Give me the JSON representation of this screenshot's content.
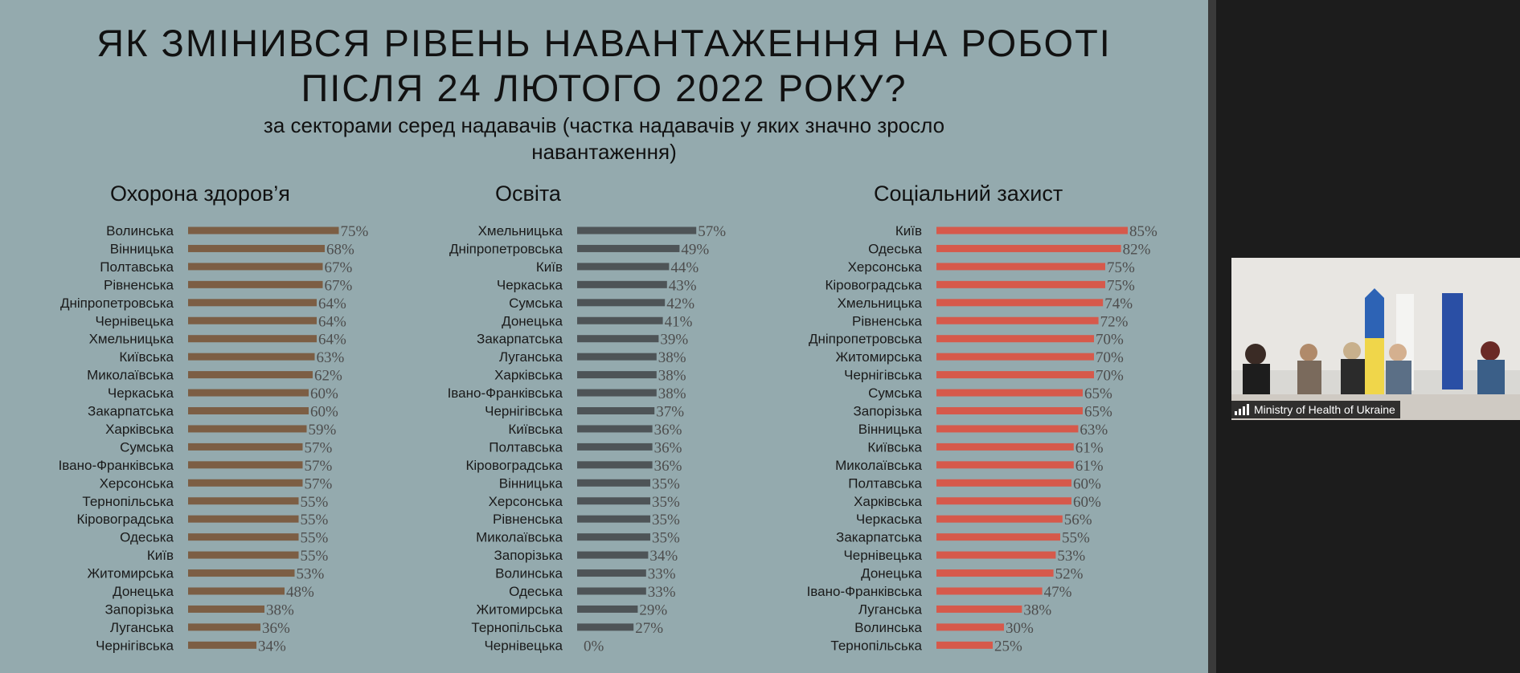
{
  "slide": {
    "title_line1": "ЯК ЗМІНИВСЯ РІВЕНЬ НАВАНТАЖЕННЯ НА РОБОТІ",
    "title_line2": "ПІСЛЯ 24 ЛЮТОГО 2022 РОКУ?",
    "subtitle_line1": "за секторами серед надавачів  (частка надавачів у яких значно зросло",
    "subtitle_line2": "навантаження)"
  },
  "video": {
    "participant_name": "Ministry of Health of Ukraine"
  },
  "colors": {
    "health": "#7c5e44",
    "education": "#4e5457",
    "social": "#d6594b"
  },
  "chart_data": [
    {
      "type": "bar",
      "title": "Охорона здоров’я",
      "orientation": "horizontal",
      "unit": "%",
      "categories": [
        "Волинська",
        "Вінницька",
        "Полтавська",
        "Рівненська",
        "Дніпропетровська",
        "Чернівецька",
        "Хмельницька",
        "Київська",
        "Миколаївська",
        "Черкаська",
        "Закарпатська",
        "Харківська",
        "Сумська",
        "Івано-Франківська",
        "Херсонська",
        "Тернопільська",
        "Кіровоградська",
        "Одеська",
        "Київ",
        "Житомирська",
        "Донецька",
        "Запорізька",
        "Луганська",
        "Чернігівська"
      ],
      "values": [
        75,
        68,
        67,
        67,
        64,
        64,
        64,
        63,
        62,
        60,
        60,
        59,
        57,
        57,
        57,
        55,
        55,
        55,
        55,
        53,
        48,
        38,
        36,
        34
      ],
      "value_labels": [
        "75%",
        "68%",
        "67%",
        "67%",
        "64%",
        "64%",
        "64%",
        "63%",
        "62%",
        "60%",
        "60%",
        "59%",
        "57%",
        "57%",
        "57%",
        "55%",
        "55%",
        "55%",
        "55%",
        "53%",
        "48%",
        "38%",
        "36%",
        "34%"
      ]
    },
    {
      "type": "bar",
      "title": "Освіта",
      "orientation": "horizontal",
      "unit": "%",
      "categories": [
        "Хмельницька",
        "Дніпропетровська",
        "Київ",
        "Черкаська",
        "Сумська",
        "Донецька",
        "Закарпатська",
        "Луганська",
        "Харківська",
        "Івано-Франківська",
        "Чернігівська",
        "Київська",
        "Полтавська",
        "Кіровоградська",
        "Вінницька",
        "Херсонська",
        "Рівненська",
        "Миколаївська",
        "Запорізька",
        "Волинська",
        "Одеська",
        "Житомирська",
        "Тернопільська",
        "Чернівецька"
      ],
      "values": [
        57,
        49,
        44,
        43,
        42,
        41,
        39,
        38,
        38,
        38,
        37,
        36,
        36,
        36,
        35,
        35,
        35,
        35,
        34,
        33,
        33,
        29,
        27,
        0
      ],
      "value_labels": [
        "57%",
        "49%",
        "44%",
        "43%",
        "42%",
        "41%",
        "39%",
        "38%",
        "38%",
        "38%",
        "37%",
        "36%",
        "36%",
        "36%",
        "35%",
        "35%",
        "35%",
        "35%",
        "34%",
        "33%",
        "33%",
        "29%",
        "27%",
        "0%"
      ]
    },
    {
      "type": "bar",
      "title": "Соціальний захист",
      "orientation": "horizontal",
      "unit": "%",
      "categories": [
        "Київ",
        "Одеська",
        "Херсонська",
        "Кіровоградська",
        "Хмельницька",
        "Рівненська",
        "Дніпропетровська",
        "Житомирська",
        "Чернігівська",
        "Сумська",
        "Запорізька",
        "Вінницька",
        "Київська",
        "Миколаївська",
        "Полтавська",
        "Харківська",
        "Черкаська",
        "Закарпатська",
        "Чернівецька",
        "Донецька",
        "Івано-Франківська",
        "Луганська",
        "Волинська",
        "Тернопільська"
      ],
      "values": [
        85,
        82,
        75,
        75,
        74,
        72,
        70,
        70,
        70,
        65,
        65,
        63,
        61,
        61,
        60,
        60,
        56,
        55,
        53,
        52,
        47,
        38,
        30,
        25
      ],
      "value_labels": [
        "85%",
        "82%",
        "75%",
        "75%",
        "74%",
        "72%",
        "70%",
        "70%",
        "70%",
        "65%",
        "65%",
        "63%",
        "61%",
        "61%",
        "60%",
        "60%",
        "56%",
        "55%",
        "53%",
        "52%",
        "47%",
        "38%",
        "30%",
        "25%"
      ]
    }
  ]
}
